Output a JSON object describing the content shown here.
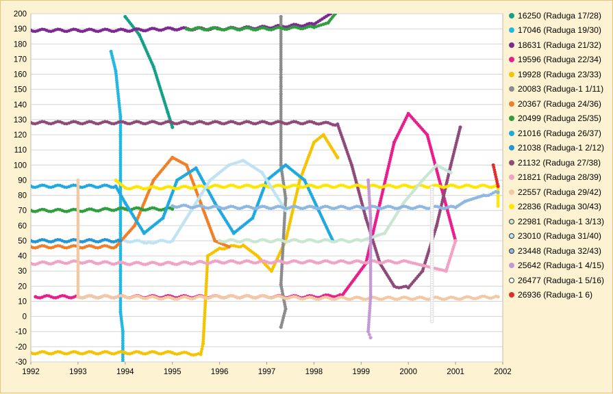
{
  "chart_data": {
    "type": "scatter",
    "title": "",
    "xlabel": "",
    "ylabel": "",
    "xlim": [
      1992,
      2002
    ],
    "ylim": [
      -30,
      200
    ],
    "x_ticks": [
      "1992",
      "1993",
      "1994",
      "1995",
      "1996",
      "1997",
      "1998",
      "1999",
      "2000",
      "2001",
      "2002"
    ],
    "y_ticks": [
      "200",
      "190",
      "180",
      "170",
      "160",
      "150",
      "140",
      "130",
      "120",
      "110",
      "100",
      "90",
      "80",
      "70",
      "60",
      "50",
      "40",
      "30",
      "20",
      "10",
      "0",
      "-10",
      "-20",
      "-30"
    ],
    "grid": "horizontal",
    "legend_position": "right",
    "series": [
      {
        "name": "16250 (Raduga 17/28)",
        "color": "#16a085",
        "points": [
          [
            1994.0,
            198
          ],
          [
            1994.3,
            186
          ],
          [
            1994.6,
            165
          ],
          [
            1994.9,
            135
          ],
          [
            1995.0,
            125
          ]
        ]
      },
      {
        "name": "17046 (Raduga 19/30)",
        "color": "#22b8e0",
        "points": [
          [
            1993.7,
            175
          ],
          [
            1993.8,
            162
          ],
          [
            1993.9,
            132
          ],
          [
            1993.9,
            120
          ],
          [
            1993.9,
            90
          ],
          [
            1993.9,
            55
          ],
          [
            1993.9,
            30
          ],
          [
            1993.9,
            3
          ],
          [
            1993.95,
            -10
          ],
          [
            1993.95,
            -30
          ]
        ]
      },
      {
        "name": "18631 (Raduga 21/32)",
        "color": "#7d2a91",
        "points": [
          [
            1992.0,
            189
          ],
          [
            1993.0,
            189
          ],
          [
            1994.0,
            189
          ],
          [
            1995.0,
            190
          ],
          [
            1996.0,
            190
          ],
          [
            1997.0,
            191
          ],
          [
            1998.0,
            193
          ],
          [
            1998.35,
            200
          ]
        ]
      },
      {
        "name": "19596 (Raduga 22/34)",
        "color": "#e91e8c",
        "points": [
          [
            1992.1,
            13
          ],
          [
            1993.0,
            13
          ],
          [
            1994.0,
            13
          ],
          [
            1995.0,
            13
          ],
          [
            1996.0,
            13
          ],
          [
            1997.0,
            13
          ],
          [
            1998.0,
            13
          ],
          [
            1998.6,
            14
          ],
          [
            1999.1,
            35
          ],
          [
            1999.4,
            75
          ],
          [
            1999.7,
            115
          ],
          [
            2000.0,
            134
          ],
          [
            2000.4,
            120
          ],
          [
            2000.7,
            85
          ],
          [
            2001.0,
            50
          ]
        ]
      },
      {
        "name": "19928 (Raduga 23/33)",
        "color": "#f5c400",
        "points": [
          [
            1992.0,
            -24
          ],
          [
            1993.0,
            -24
          ],
          [
            1994.0,
            -24
          ],
          [
            1995.0,
            -24
          ],
          [
            1995.6,
            -25
          ],
          [
            1995.65,
            -18
          ],
          [
            1995.7,
            10
          ],
          [
            1995.75,
            40
          ],
          [
            1996.0,
            45
          ],
          [
            1996.5,
            47
          ],
          [
            1996.8,
            40
          ],
          [
            1997.1,
            30
          ],
          [
            1997.4,
            50
          ],
          [
            1997.7,
            90
          ],
          [
            1998.0,
            115
          ],
          [
            1998.2,
            120
          ],
          [
            1998.5,
            105
          ]
        ]
      },
      {
        "name": "20083 (Raduga-1 1/11)",
        "color": "#8c8c8c",
        "points": [
          [
            1997.3,
            198
          ],
          [
            1997.3,
            163
          ],
          [
            1997.3,
            158
          ],
          [
            1997.3,
            152
          ],
          [
            1997.3,
            147
          ],
          [
            1997.3,
            100
          ],
          [
            1997.4,
            78
          ],
          [
            1997.3,
            21
          ],
          [
            1997.4,
            5
          ],
          [
            1997.3,
            -7
          ]
        ]
      },
      {
        "name": "20367 (Raduga 24/36)",
        "color": "#f07f2a",
        "points": [
          [
            1992.0,
            46
          ],
          [
            1993.0,
            46
          ],
          [
            1993.8,
            46
          ],
          [
            1994.2,
            60
          ],
          [
            1994.6,
            90
          ],
          [
            1995.0,
            105
          ],
          [
            1995.3,
            100
          ],
          [
            1995.6,
            75
          ],
          [
            1995.9,
            50
          ],
          [
            1996.2,
            46
          ]
        ]
      },
      {
        "name": "20499 (Raduga 25/35)",
        "color": "#2e9e3e",
        "points": [
          [
            1992.0,
            70
          ],
          [
            1993.0,
            70
          ],
          [
            1994.0,
            71
          ],
          [
            1995.0,
            71
          ],
          [
            1995.3,
            190
          ],
          [
            1996.0,
            190
          ],
          [
            1997.0,
            190
          ],
          [
            1998.0,
            191
          ],
          [
            1998.3,
            194
          ],
          [
            1998.45,
            200
          ]
        ]
      },
      {
        "name": "21016 (Raduga 26/37)",
        "color": "#1fa9e1",
        "points": [
          [
            1992.0,
            86
          ],
          [
            1993.0,
            86
          ],
          [
            1993.8,
            86
          ],
          [
            1994.0,
            75
          ],
          [
            1994.4,
            55
          ],
          [
            1994.8,
            65
          ],
          [
            1995.1,
            90
          ],
          [
            1995.5,
            98
          ],
          [
            1995.9,
            75
          ],
          [
            1996.3,
            55
          ],
          [
            1996.7,
            65
          ],
          [
            1997.0,
            90
          ],
          [
            1997.4,
            100
          ],
          [
            1997.8,
            90
          ],
          [
            1998.1,
            70
          ],
          [
            1998.4,
            50
          ]
        ]
      },
      {
        "name": "21038 (Raduga-1 2/12)",
        "color": "#2196d8",
        "points": [
          [
            1992.0,
            50
          ],
          [
            1993.0,
            50
          ],
          [
            1993.9,
            50
          ]
        ]
      },
      {
        "name": "21132 (Raduga 27/38)",
        "color": "#8e4a78",
        "points": [
          [
            1992.0,
            128
          ],
          [
            1993.0,
            128
          ],
          [
            1994.0,
            128
          ],
          [
            1995.0,
            128
          ],
          [
            1996.0,
            128
          ],
          [
            1997.0,
            128
          ],
          [
            1998.0,
            128
          ],
          [
            1998.5,
            127
          ],
          [
            1998.8,
            100
          ],
          [
            1999.1,
            65
          ],
          [
            1999.4,
            35
          ],
          [
            1999.7,
            20
          ],
          [
            2000.0,
            19
          ],
          [
            2000.3,
            30
          ],
          [
            2000.6,
            60
          ],
          [
            2000.9,
            100
          ],
          [
            2001.1,
            125
          ]
        ]
      },
      {
        "name": "21821 (Raduga 28/39)",
        "color": "#f0a3c5",
        "points": [
          [
            1992.0,
            35
          ],
          [
            1993.0,
            36
          ],
          [
            1994.0,
            35
          ],
          [
            1995.0,
            35
          ],
          [
            1996.0,
            36
          ],
          [
            1997.0,
            36
          ],
          [
            1998.0,
            36
          ],
          [
            1999.0,
            36
          ],
          [
            2000.0,
            36
          ],
          [
            2000.8,
            30
          ],
          [
            2001.0,
            50
          ]
        ]
      },
      {
        "name": "22557 (Raduga 29/42)",
        "color": "#f2c9a3",
        "points": [
          [
            1993.0,
            90
          ],
          [
            1993.0,
            78
          ],
          [
            1993.0,
            13
          ],
          [
            1994.0,
            13
          ],
          [
            1995.0,
            12
          ],
          [
            1996.0,
            13
          ],
          [
            1997.0,
            13
          ],
          [
            1998.0,
            12
          ],
          [
            1999.0,
            12
          ],
          [
            2000.0,
            12
          ],
          [
            2001.0,
            12
          ],
          [
            2001.9,
            13
          ]
        ]
      },
      {
        "name": "22836 (Raduga 30/43)",
        "color": "#ffe600",
        "points": [
          [
            1993.8,
            90
          ],
          [
            1994.0,
            85
          ],
          [
            1995.0,
            85
          ],
          [
            1996.0,
            86
          ],
          [
            1997.0,
            86
          ],
          [
            1998.0,
            86
          ],
          [
            1999.0,
            86
          ],
          [
            2000.0,
            86
          ],
          [
            2001.0,
            86
          ],
          [
            2001.9,
            86
          ],
          [
            2001.9,
            73
          ]
        ]
      },
      {
        "name": "22981 (Raduga-1 3/13)",
        "color": "#c9e6d2",
        "points": [
          [
            1996.0,
            50
          ],
          [
            1997.0,
            50
          ],
          [
            1998.0,
            50
          ],
          [
            1999.0,
            50
          ],
          [
            1999.5,
            55
          ],
          [
            1999.9,
            75
          ],
          [
            2000.3,
            90
          ],
          [
            2000.6,
            100
          ],
          [
            2000.9,
            95
          ]
        ]
      },
      {
        "name": "23010 (Raduga 31/40)",
        "color": "#bfe3f2",
        "points": [
          [
            1994.0,
            50
          ],
          [
            1994.5,
            49
          ],
          [
            1995.0,
            50
          ],
          [
            1995.4,
            70
          ],
          [
            1995.8,
            90
          ],
          [
            1996.2,
            100
          ],
          [
            1996.5,
            103
          ],
          [
            1996.9,
            95
          ],
          [
            1997.2,
            80
          ],
          [
            1997.4,
            70
          ]
        ]
      },
      {
        "name": "23448 (Raduga 32/43)",
        "color": "#8fb8e0",
        "points": [
          [
            1995.0,
            73
          ],
          [
            1996.0,
            72
          ],
          [
            1997.0,
            72
          ],
          [
            1998.0,
            72
          ],
          [
            1999.0,
            72
          ],
          [
            2000.0,
            72
          ],
          [
            2001.0,
            72
          ],
          [
            2001.2,
            76
          ],
          [
            2001.6,
            80
          ],
          [
            2001.9,
            82
          ]
        ]
      },
      {
        "name": "25642 (Raduga-1 4/15)",
        "color": "#c39ad6",
        "points": [
          [
            1999.15,
            90
          ],
          [
            1999.2,
            65
          ],
          [
            1999.2,
            45
          ],
          [
            1999.2,
            13
          ],
          [
            1999.15,
            -10
          ],
          [
            1999.2,
            -14
          ]
        ]
      },
      {
        "name": "26477 (Raduga-1 5/16)",
        "color": "#ffffff",
        "points": [
          [
            2000.5,
            85
          ],
          [
            2000.5,
            40
          ],
          [
            2000.5,
            -3
          ]
        ]
      },
      {
        "name": "26936 (Raduga-1 6)",
        "color": "#e32d2d",
        "points": [
          [
            2001.8,
            100
          ],
          [
            2001.9,
            86
          ]
        ]
      }
    ]
  }
}
